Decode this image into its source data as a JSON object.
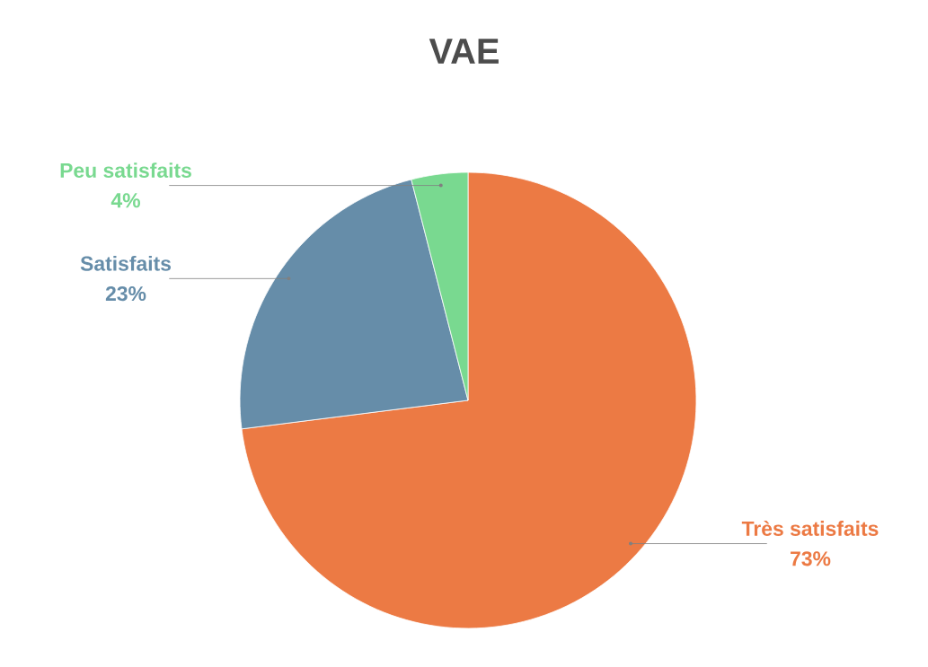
{
  "chart_data": {
    "type": "pie",
    "title": "VAE",
    "categories": [
      "Très satisfaits",
      "Satisfaits",
      "Peu satisfaits"
    ],
    "values": [
      73,
      23,
      4
    ],
    "value_labels": [
      "73%",
      "23%",
      "4%"
    ],
    "colors": [
      "#ec7a44",
      "#668da9",
      "#79d990"
    ]
  }
}
